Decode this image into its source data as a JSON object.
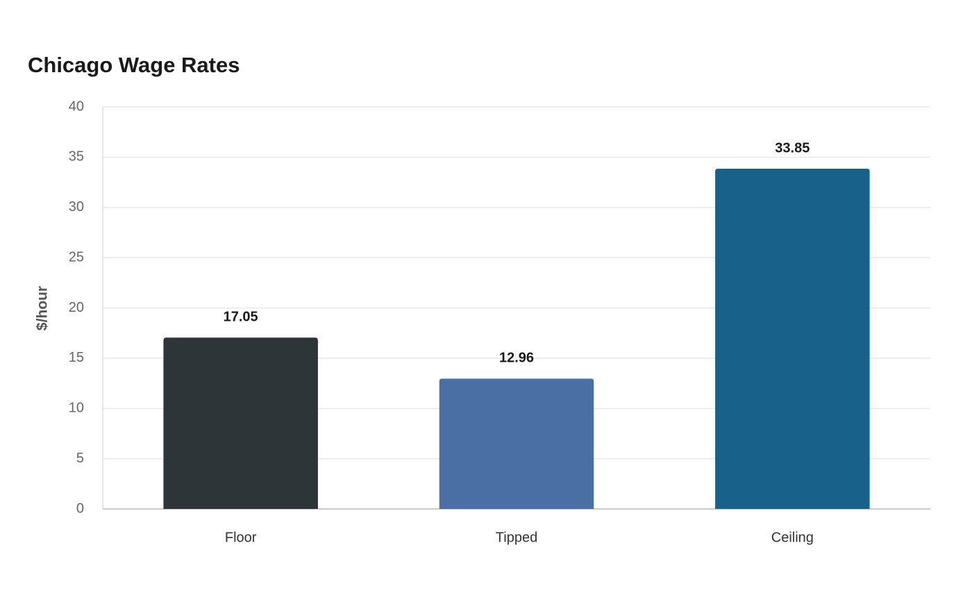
{
  "chart_data": {
    "type": "bar",
    "title": "Chicago Wage Rates",
    "y_label": "$/hour",
    "categories": [
      "Floor",
      "Tipped",
      "Ceiling"
    ],
    "values": [
      17.05,
      12.96,
      33.85
    ],
    "colors": [
      "#2e3538",
      "#4a6fa5",
      "#17618a"
    ],
    "ylim": [
      0,
      40
    ],
    "yticks": [
      0,
      5,
      10,
      15,
      20,
      25,
      30,
      35,
      40
    ],
    "grid": true
  }
}
